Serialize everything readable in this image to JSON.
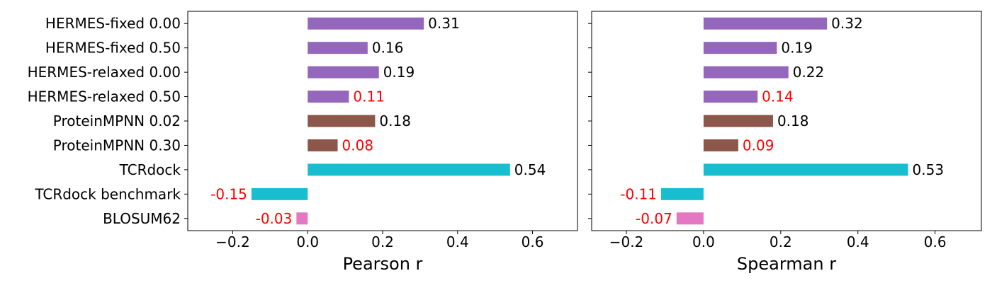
{
  "chart_data": [
    {
      "type": "bar",
      "orientation": "horizontal",
      "categories": [
        "HERMES-fixed 0.00",
        "HERMES-fixed 0.50",
        "HERMES-relaxed 0.00",
        "HERMES-relaxed 0.50",
        "ProteinMPNN 0.02",
        "ProteinMPNN 0.30",
        "TCRdock",
        "TCRdock benchmark",
        "BLOSUM62"
      ],
      "values": [
        0.31,
        0.16,
        0.19,
        0.11,
        0.18,
        0.08,
        0.54,
        -0.15,
        -0.03
      ],
      "value_labels": [
        "0.31",
        "0.16",
        "0.19",
        "0.11",
        "0.18",
        "0.08",
        "0.54",
        "-0.15",
        "-0.03"
      ],
      "bar_colors": [
        "#9467bd",
        "#9467bd",
        "#9467bd",
        "#9467bd",
        "#8c564b",
        "#8c564b",
        "#17becf",
        "#17becf",
        "#e377c2"
      ],
      "label_colors": [
        "#000000",
        "#000000",
        "#000000",
        "#ff0000",
        "#000000",
        "#ff0000",
        "#000000",
        "#ff0000",
        "#ff0000"
      ],
      "xlabel": "Pearson r",
      "xlim": [
        -0.32,
        0.72
      ],
      "xticks": [
        -0.2,
        0.0,
        0.2,
        0.4,
        0.6
      ],
      "xtick_labels": [
        "−0.2",
        "0.0",
        "0.2",
        "0.4",
        "0.6"
      ],
      "grid": false
    },
    {
      "type": "bar",
      "orientation": "horizontal",
      "categories": [
        "HERMES-fixed 0.00",
        "HERMES-fixed 0.50",
        "HERMES-relaxed 0.00",
        "HERMES-relaxed 0.50",
        "ProteinMPNN 0.02",
        "ProteinMPNN 0.30",
        "TCRdock",
        "TCRdock benchmark",
        "BLOSUM62"
      ],
      "values": [
        0.32,
        0.19,
        0.22,
        0.14,
        0.18,
        0.09,
        0.53,
        -0.11,
        -0.07
      ],
      "value_labels": [
        "0.32",
        "0.19",
        "0.22",
        "0.14",
        "0.18",
        "0.09",
        "0.53",
        "-0.11",
        "-0.07"
      ],
      "bar_colors": [
        "#9467bd",
        "#9467bd",
        "#9467bd",
        "#9467bd",
        "#8c564b",
        "#8c564b",
        "#17becf",
        "#17becf",
        "#e377c2"
      ],
      "label_colors": [
        "#000000",
        "#000000",
        "#000000",
        "#ff0000",
        "#000000",
        "#ff0000",
        "#000000",
        "#ff0000",
        "#ff0000"
      ],
      "xlabel": "Spearman r",
      "xlim": [
        -0.29,
        0.72
      ],
      "xticks": [
        -0.2,
        0.0,
        0.2,
        0.4,
        0.6
      ],
      "xtick_labels": [
        "−0.2",
        "0.0",
        "0.2",
        "0.4",
        "0.6"
      ],
      "grid": false
    }
  ]
}
